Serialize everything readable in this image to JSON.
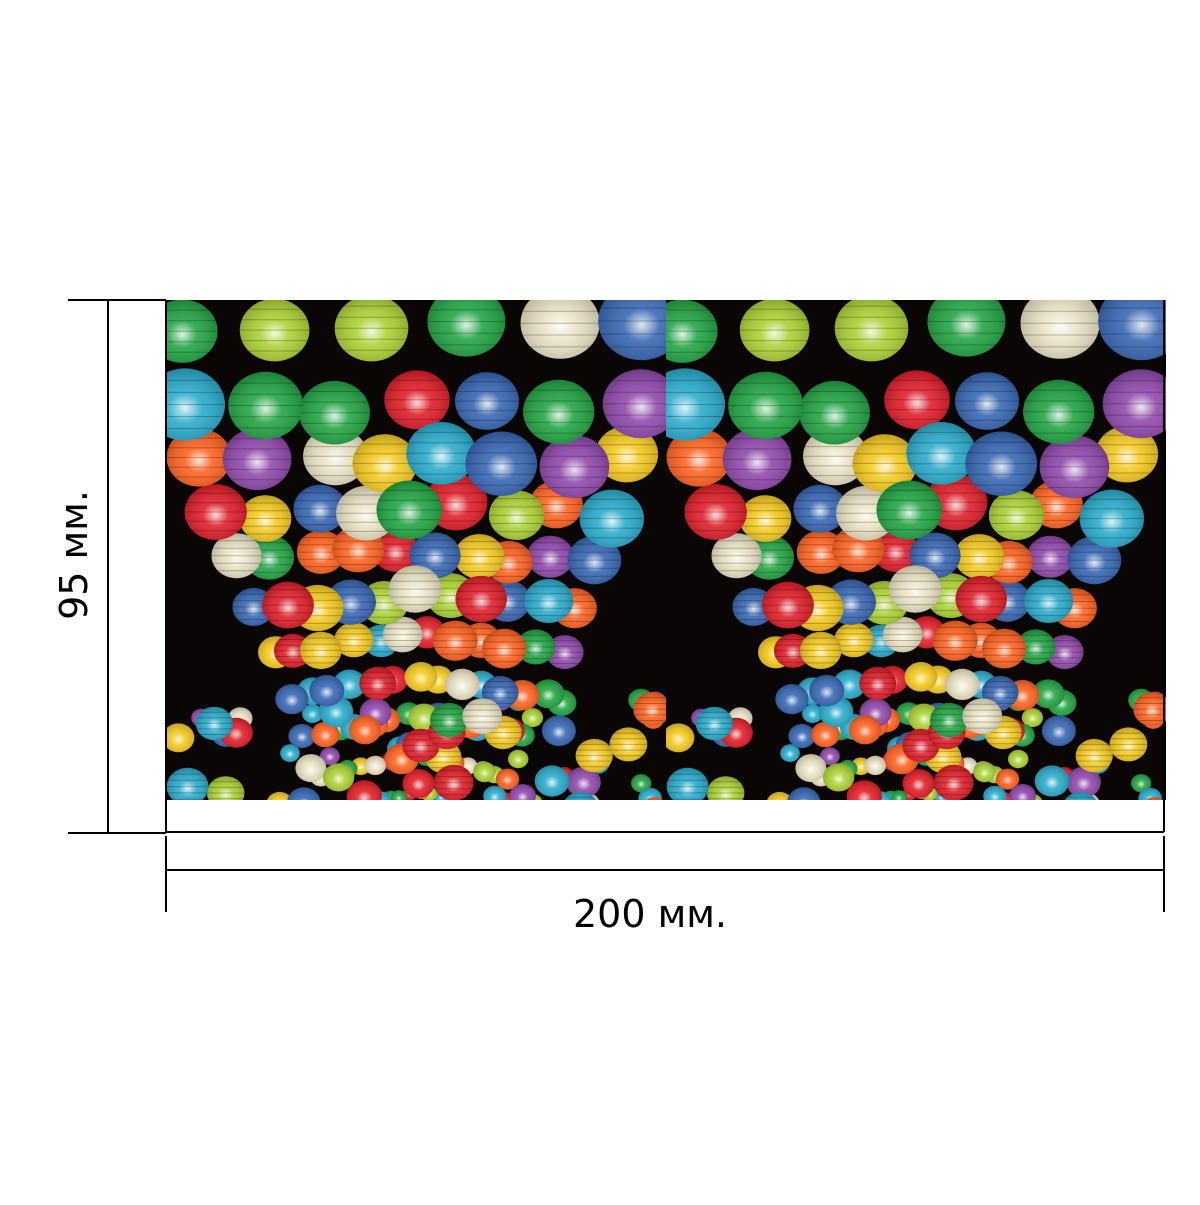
{
  "dimensions": {
    "width_label": "200 мм.",
    "height_label": "95 мм."
  },
  "product": {
    "panel_count": 2,
    "motif": "lantern-festival",
    "background_color": "#0a0606",
    "line_color": "#000000",
    "lantern_palette": [
      "#ff5a14",
      "#1fa7c9",
      "#17a03a",
      "#f5c815",
      "#e8e0c0",
      "#8b3fa8",
      "#e0121e",
      "#a8d02a",
      "#2d5fb0"
    ]
  }
}
